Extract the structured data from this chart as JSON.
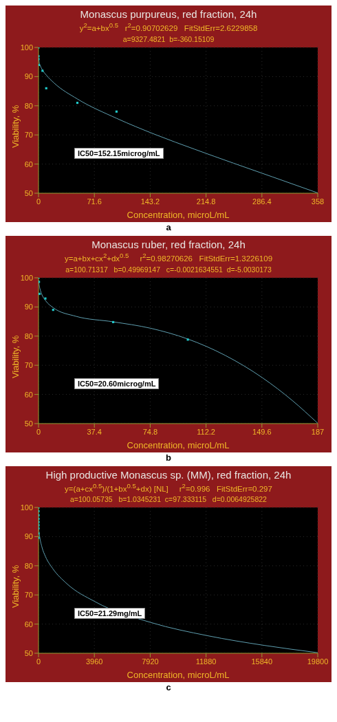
{
  "chart_data": [
    {
      "type": "scatter",
      "title": "Monascus purpureus, red fraction, 24h",
      "subtitle": "y$^{2}$=a+bx$^{0.5}$   r$^{2}$=0.90702629   FitStdErr=2.6229858\na=9327.4821  b=-360.15109",
      "xlabel": "Concentration, microL/mL",
      "ylabel": "Viability, %",
      "annotations": [
        "IC50=152.15microg/mL",
        "a"
      ],
      "xlim": [
        0,
        358
      ],
      "xticks": [
        0,
        71.6,
        143.2,
        214.8,
        286.4,
        358
      ],
      "ylim": [
        50,
        100
      ],
      "yticks": [
        50,
        60,
        70,
        80,
        90,
        100
      ],
      "grid": true,
      "series": [
        {
          "marker": "square",
          "color": "#20c8c8",
          "x": [
            0,
            0,
            0,
            0.5,
            5.1,
            9.9,
            49.8,
            100
          ],
          "values": [
            100,
            97,
            96,
            94,
            92,
            86,
            81,
            78
          ]
        },
        {
          "type": "line",
          "color": "#5f9fb0",
          "x": [
            0,
            1,
            2,
            5,
            10,
            20,
            50,
            100,
            150,
            200,
            250,
            300,
            358
          ],
          "values": [
            96.6,
            94.7,
            93.9,
            92.3,
            90.5,
            87.8,
            82.3,
            75.7,
            70.1,
            65.1,
            60.3,
            55.6,
            50.1
          ]
        }
      ]
    },
    {
      "type": "scatter",
      "title": "Monascus ruber, red fraction, 24h",
      "subtitle": "y=a+bx+cx$^{2}$+dx$^{0.5}$     r$^{2}$=0.98270626   FitStdErr=1.3226109\na=100.71317   b=0.49969147   c=-0.0021634551  d=-5.0030173",
      "xlabel": "Concentration, microL/mL",
      "ylabel": "Viability, %",
      "annotations": [
        "IC50=20.60microg/mL",
        "b"
      ],
      "xlim": [
        0,
        187
      ],
      "xticks": [
        0,
        37.4,
        74.8,
        112.2,
        149.6,
        187
      ],
      "ylim": [
        50,
        100
      ],
      "yticks": [
        50,
        60,
        70,
        80,
        90,
        100
      ],
      "grid": true,
      "series": [
        {
          "marker": "square",
          "color": "#20c8c8",
          "x": [
            0,
            0.3,
            0.7,
            4.6,
            9.8,
            50,
            100
          ],
          "values": [
            100,
            98.6,
            94.5,
            92.9,
            89,
            84.8,
            78.8
          ]
        },
        {
          "type": "line",
          "color": "#5f9fb0",
          "x": [
            0.1,
            0.3,
            1,
            2,
            5,
            10,
            25,
            50,
            75,
            100,
            125,
            150,
            170,
            187
          ],
          "values": [
            99.2,
            98.1,
            96.2,
            94.6,
            92,
            89.7,
            86.8,
            84.9,
            82.7,
            79,
            73.4,
            65.7,
            57.9,
            50.1
          ]
        }
      ]
    },
    {
      "type": "scatter",
      "title": "High productive Monascus sp. (MM), red fraction, 24h",
      "subtitle": "y=(a+cx$^{0.5}$)/(1+bx$^{0.5}$+dx) [NL]     r$^{2}$=0.996   FitStdErr=0.297\na=100.05735   b=1.0345231  c=97.333115   d=0.0064925822",
      "xlabel": "Concentration, microL/mL",
      "ylabel": "Viability, %",
      "annotations": [
        "IC50=21.29mg/mL",
        "c"
      ],
      "xlim": [
        0,
        19800
      ],
      "xticks": [
        0,
        3960,
        7920,
        11880,
        15840,
        19800
      ],
      "ylim": [
        50,
        100
      ],
      "yticks": [
        50,
        60,
        70,
        80,
        90,
        100
      ],
      "grid": true,
      "series": [
        {
          "marker": "square",
          "color": "#20c8c8",
          "x": [
            0,
            0,
            0,
            0,
            0,
            0,
            0,
            0,
            0
          ],
          "values": [
            100,
            98.7,
            97.3,
            96.1,
            95,
            93.9,
            92.8,
            91.1,
            89.6
          ]
        },
        {
          "type": "line",
          "color": "#5f9fb0",
          "x": [
            0,
            1,
            20,
            50,
            100,
            250,
            500,
            1000,
            2000,
            4000,
            8000,
            12000,
            16000,
            19800
          ],
          "values": [
            100,
            96.7,
            93,
            91.2,
            89.5,
            86.3,
            83.1,
            79.1,
            73.9,
            67.7,
            60.5,
            56,
            52.7,
            50.2
          ]
        }
      ]
    }
  ]
}
